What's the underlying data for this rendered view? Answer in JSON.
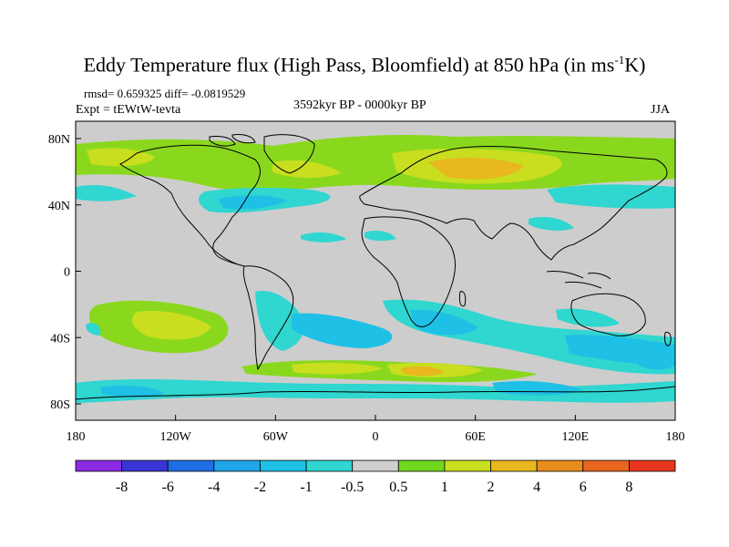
{
  "title_main": "Eddy Temperature flux (High Pass, Bloomfield) at 850 hPa (in ms",
  "title_sup": "-1",
  "title_end": "K)",
  "stats_line": "rmsd= 0.659325 diff= -0.0819529",
  "expt_line": "Expt = tEWtW-tevta",
  "period_line": "3592kyr BP - 0000kyr BP",
  "season": "JJA",
  "lat_labels": [
    "80N",
    "40N",
    "0",
    "40S",
    "80S"
  ],
  "lon_labels": [
    "180",
    "120W",
    "60W",
    "0",
    "60E",
    "120E",
    "180"
  ],
  "colorbar_labels": [
    "-8",
    "-6",
    "-4",
    "-2",
    "-1",
    "-0.5",
    "0.5",
    "1",
    "2",
    "4",
    "6",
    "8"
  ],
  "colorbar_colors": [
    "#8a2be2",
    "#3a35d6",
    "#1e6fe6",
    "#1ea6e8",
    "#1ec0e6",
    "#30d6d0",
    "#cfcfcf",
    "#70d81e",
    "#c8de1e",
    "#e8b81e",
    "#e88c1e",
    "#e8661e",
    "#e8361e"
  ],
  "colors": {
    "land_background": "#cdcdcd",
    "coast": "#000000"
  }
}
